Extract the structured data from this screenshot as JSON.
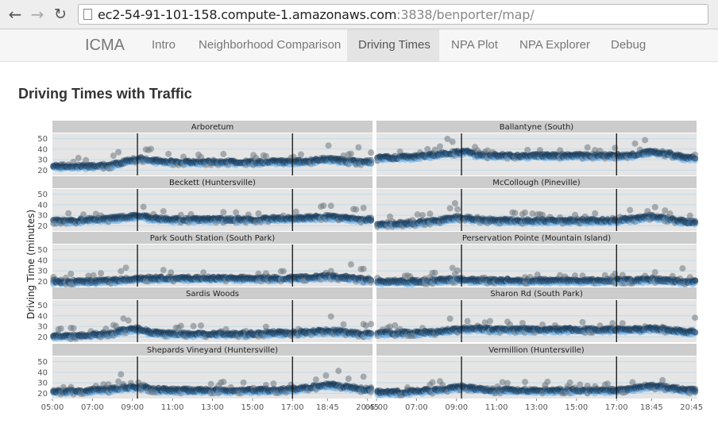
{
  "browser": {
    "url_host": "ec2-54-91-101-158.compute-1.amazonaws.com",
    "url_rest": ":3838/benporter/map/"
  },
  "nav": {
    "brand": "ICMA",
    "tabs": [
      {
        "label": "Intro",
        "active": false
      },
      {
        "label": "Neighborhood Comparison",
        "active": false
      },
      {
        "label": "Driving Times",
        "active": true
      },
      {
        "label": "NPA Plot",
        "active": false
      },
      {
        "label": "NPA Explorer",
        "active": false
      },
      {
        "label": "Debug",
        "active": false
      }
    ]
  },
  "page": {
    "title": "Driving Times with Traffic"
  },
  "colors": {
    "panel_bg": "#e5e5e5",
    "strip_bg": "#cccccc",
    "point_dark": "#1d3f5e",
    "point_light": "#6ab0e8",
    "point_grey": "#6f7880"
  },
  "chart_data": {
    "type": "scatter",
    "ylabel": "Driving Time (minutes)",
    "xlabel": "",
    "x_ticks": [
      "05:00",
      "07:00",
      "09:00",
      "11:00",
      "13:00",
      "15:00",
      "17:00",
      "18:45",
      "20:45"
    ],
    "y_ticks": [
      20,
      30,
      40,
      50
    ],
    "ylim": [
      15,
      55
    ],
    "xlim": [
      "05:00",
      "21:00"
    ],
    "vlines": [
      "09:15",
      "17:00"
    ],
    "facets": [
      {
        "name": "Arboretum",
        "series": [
          [
            5,
            24
          ],
          [
            6,
            24
          ],
          [
            7,
            24
          ],
          [
            8,
            25
          ],
          [
            9,
            30
          ],
          [
            9.5,
            31
          ],
          [
            10,
            29
          ],
          [
            11,
            28
          ],
          [
            12,
            28
          ],
          [
            13,
            28
          ],
          [
            14,
            28
          ],
          [
            15,
            28
          ],
          [
            16,
            28
          ],
          [
            17,
            28
          ],
          [
            18,
            29
          ],
          [
            18.75,
            31
          ],
          [
            19.5,
            29
          ],
          [
            20.5,
            28
          ]
        ]
      },
      {
        "name": "Ballantyne (South)",
        "series": [
          [
            5,
            32
          ],
          [
            6,
            32
          ],
          [
            7,
            33
          ],
          [
            8,
            35
          ],
          [
            9,
            37
          ],
          [
            9.5,
            38
          ],
          [
            10,
            35
          ],
          [
            11,
            34
          ],
          [
            12,
            34
          ],
          [
            13,
            34
          ],
          [
            14,
            34
          ],
          [
            15,
            34
          ],
          [
            16,
            34
          ],
          [
            17,
            34
          ],
          [
            18,
            35
          ],
          [
            18.75,
            38
          ],
          [
            19.5,
            36
          ],
          [
            20.5,
            32
          ]
        ]
      },
      {
        "name": "Beckett (Huntersville)",
        "series": [
          [
            5,
            25
          ],
          [
            6,
            25
          ],
          [
            7,
            26
          ],
          [
            8,
            27
          ],
          [
            9,
            29
          ],
          [
            9.5,
            29
          ],
          [
            10,
            27
          ],
          [
            11,
            26
          ],
          [
            12,
            26
          ],
          [
            13,
            26
          ],
          [
            14,
            26
          ],
          [
            15,
            26
          ],
          [
            16,
            27
          ],
          [
            17,
            27
          ],
          [
            18,
            28
          ],
          [
            18.75,
            29
          ],
          [
            19.5,
            28
          ],
          [
            20.5,
            26
          ]
        ]
      },
      {
        "name": "McCollough (Pineville)",
        "series": [
          [
            5,
            22
          ],
          [
            6,
            22
          ],
          [
            7,
            23
          ],
          [
            8,
            25
          ],
          [
            9,
            28
          ],
          [
            9.5,
            28
          ],
          [
            10,
            26
          ],
          [
            11,
            25
          ],
          [
            12,
            25
          ],
          [
            13,
            25
          ],
          [
            14,
            25
          ],
          [
            15,
            25
          ],
          [
            16,
            25
          ],
          [
            17,
            25
          ],
          [
            18,
            27
          ],
          [
            18.75,
            29
          ],
          [
            19.5,
            27
          ],
          [
            20.5,
            24
          ]
        ]
      },
      {
        "name": "Park South Station (South Park)",
        "series": [
          [
            5,
            20
          ],
          [
            6,
            20
          ],
          [
            7,
            20
          ],
          [
            8,
            21
          ],
          [
            9,
            22
          ],
          [
            9.5,
            23
          ],
          [
            10,
            23
          ],
          [
            11,
            23
          ],
          [
            12,
            23
          ],
          [
            13,
            23
          ],
          [
            14,
            23
          ],
          [
            15,
            23
          ],
          [
            16,
            23
          ],
          [
            17,
            23
          ],
          [
            18,
            24
          ],
          [
            18.75,
            25
          ],
          [
            19.5,
            24
          ],
          [
            20.5,
            22
          ]
        ]
      },
      {
        "name": "Perservation Pointe (Mountain Island)",
        "series": [
          [
            5,
            20
          ],
          [
            6,
            20
          ],
          [
            7,
            20
          ],
          [
            8,
            21
          ],
          [
            9,
            22
          ],
          [
            9.5,
            22
          ],
          [
            10,
            21
          ],
          [
            11,
            21
          ],
          [
            12,
            21
          ],
          [
            13,
            21
          ],
          [
            14,
            21
          ],
          [
            15,
            21
          ],
          [
            16,
            21
          ],
          [
            17,
            21
          ],
          [
            18,
            21
          ],
          [
            18.75,
            22
          ],
          [
            19.5,
            21
          ],
          [
            20.5,
            20
          ]
        ]
      },
      {
        "name": "Sardis Woods",
        "series": [
          [
            5,
            21
          ],
          [
            6,
            21
          ],
          [
            7,
            22
          ],
          [
            8,
            24
          ],
          [
            9,
            28
          ],
          [
            9.5,
            27
          ],
          [
            10,
            24
          ],
          [
            11,
            23
          ],
          [
            12,
            23
          ],
          [
            13,
            23
          ],
          [
            14,
            23
          ],
          [
            15,
            23
          ],
          [
            16,
            24
          ],
          [
            17,
            24
          ],
          [
            18,
            25
          ],
          [
            18.75,
            26
          ],
          [
            19.5,
            25
          ],
          [
            20.5,
            23
          ]
        ]
      },
      {
        "name": "Sharon Rd (South Park)",
        "series": [
          [
            5,
            24
          ],
          [
            6,
            24
          ],
          [
            7,
            24
          ],
          [
            8,
            25
          ],
          [
            9,
            27
          ],
          [
            9.5,
            28
          ],
          [
            10,
            28
          ],
          [
            11,
            27
          ],
          [
            12,
            27
          ],
          [
            13,
            27
          ],
          [
            14,
            27
          ],
          [
            15,
            27
          ],
          [
            16,
            27
          ],
          [
            17,
            27
          ],
          [
            18,
            27
          ],
          [
            18.75,
            28
          ],
          [
            19.5,
            27
          ],
          [
            20.5,
            25
          ]
        ]
      },
      {
        "name": "Shepards Vineyard (Huntersville)",
        "series": [
          [
            5,
            22
          ],
          [
            6,
            22
          ],
          [
            7,
            23
          ],
          [
            8,
            24
          ],
          [
            9,
            26
          ],
          [
            9.5,
            26
          ],
          [
            10,
            24
          ],
          [
            11,
            23
          ],
          [
            12,
            23
          ],
          [
            13,
            23
          ],
          [
            14,
            23
          ],
          [
            15,
            23
          ],
          [
            16,
            23
          ],
          [
            17,
            24
          ],
          [
            18,
            26
          ],
          [
            18.75,
            28
          ],
          [
            19.5,
            27
          ],
          [
            20.5,
            24
          ]
        ]
      },
      {
        "name": "Vermillion (Huntersville)",
        "series": [
          [
            5,
            21
          ],
          [
            6,
            21
          ],
          [
            7,
            22
          ],
          [
            8,
            23
          ],
          [
            9,
            26
          ],
          [
            9.5,
            26
          ],
          [
            10,
            24
          ],
          [
            11,
            23
          ],
          [
            12,
            23
          ],
          [
            13,
            23
          ],
          [
            14,
            23
          ],
          [
            15,
            23
          ],
          [
            16,
            23
          ],
          [
            17,
            23
          ],
          [
            18,
            25
          ],
          [
            18.75,
            27
          ],
          [
            19.5,
            26
          ],
          [
            20.5,
            23
          ]
        ]
      }
    ]
  }
}
